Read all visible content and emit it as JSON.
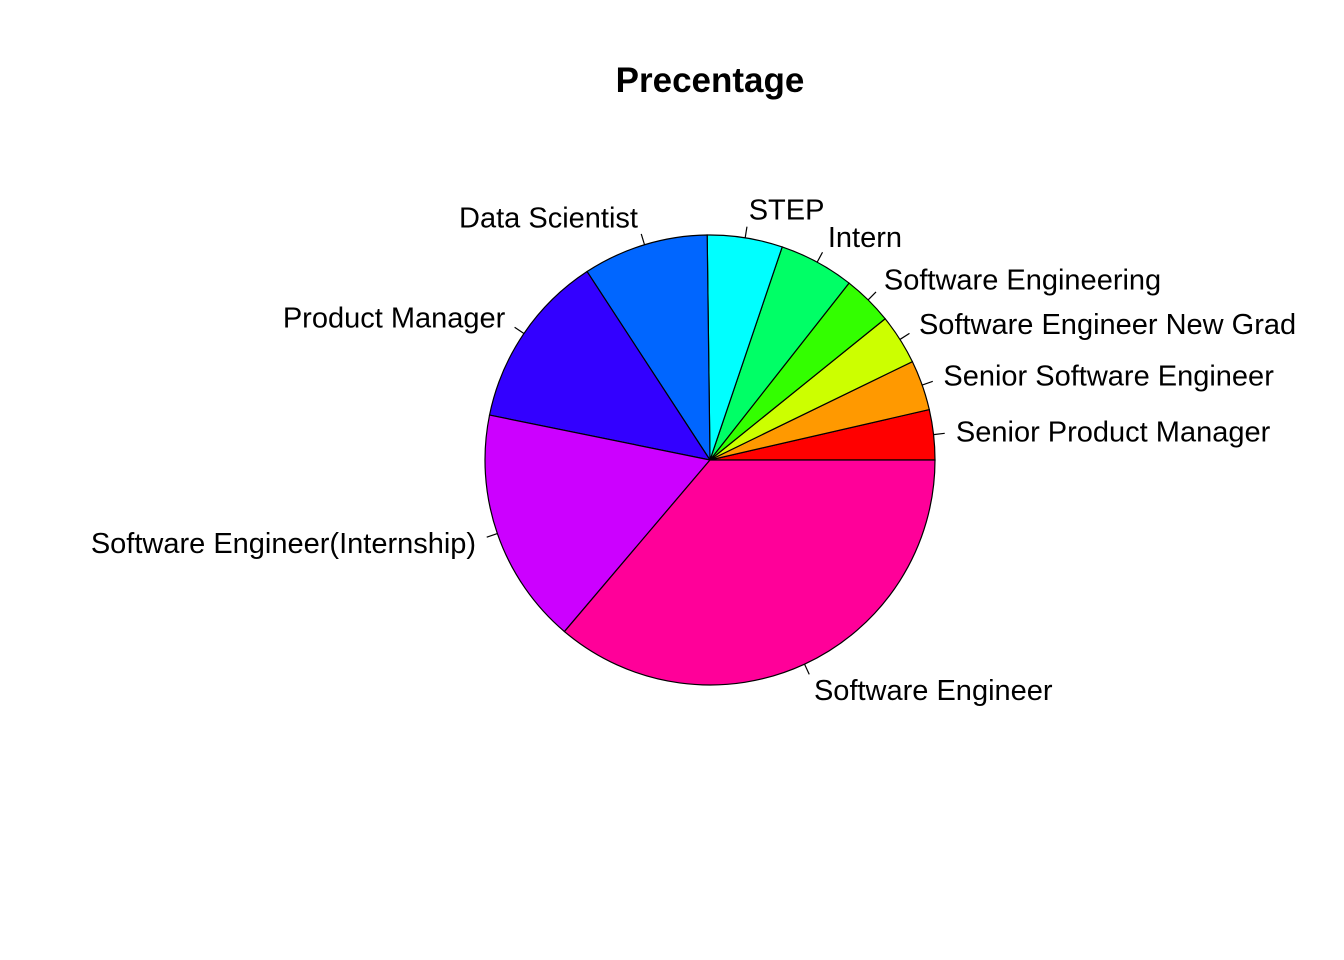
{
  "chart_data": {
    "type": "pie",
    "title": "Precentage",
    "direction": "counterclockwise",
    "start": "3 o'clock",
    "slices": [
      {
        "label": "Senior Product Manager",
        "value": 3.6,
        "color": "#FF0000"
      },
      {
        "label": "Senior Software Engineer",
        "value": 3.6,
        "color": "#FF9900"
      },
      {
        "label": "Software Engineer New Grad",
        "value": 3.6,
        "color": "#CCFF00"
      },
      {
        "label": "Software Engineering",
        "value": 3.6,
        "color": "#33FF00"
      },
      {
        "label": "Intern",
        "value": 5.4,
        "color": "#00FF66"
      },
      {
        "label": "STEP",
        "value": 5.4,
        "color": "#00FFFF"
      },
      {
        "label": "Data Scientist",
        "value": 9.0,
        "color": "#0066FF"
      },
      {
        "label": "Product Manager",
        "value": 12.6,
        "color": "#3300FF"
      },
      {
        "label": "Software Engineer(Internship)",
        "value": 17.0,
        "color": "#CC00FF"
      },
      {
        "label": "Software Engineer",
        "value": 36.2,
        "color": "#FF0099"
      }
    ]
  }
}
